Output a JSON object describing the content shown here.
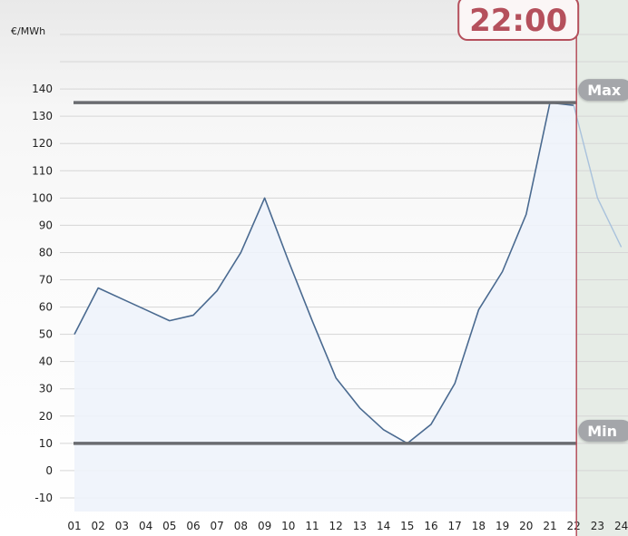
{
  "chart_data": {
    "type": "line",
    "unit_label": "€/MWh",
    "x": [
      "01",
      "02",
      "03",
      "04",
      "05",
      "06",
      "07",
      "08",
      "09",
      "10",
      "11",
      "12",
      "13",
      "14",
      "15",
      "16",
      "17",
      "18",
      "19",
      "20",
      "21",
      "22",
      "23",
      "24"
    ],
    "series": [
      {
        "values": [
          50,
          67,
          63,
          59,
          55,
          57,
          66,
          80,
          100,
          77,
          55,
          34,
          23,
          15,
          10,
          17,
          32,
          59,
          73,
          94,
          135,
          134,
          100,
          82
        ]
      }
    ],
    "ylim": [
      -15,
      160
    ],
    "yticks": [
      "140",
      "130",
      "120",
      "110",
      "100",
      "90",
      "80",
      "70",
      "60",
      "50",
      "40",
      "30",
      "20",
      "10",
      "0",
      "-10"
    ],
    "ytick_values": [
      140,
      130,
      120,
      110,
      100,
      90,
      80,
      70,
      60,
      50,
      40,
      30,
      20,
      10,
      0,
      -10
    ],
    "max_line": {
      "label": "Max",
      "value": 135
    },
    "min_line": {
      "label": "Min",
      "value": 10
    },
    "current_time": {
      "label": "22:00",
      "hour_index": 21
    },
    "grid": true,
    "colors": {
      "line": "#4a6a90",
      "future_line": "#a9c2dc",
      "area_fill": "#eef3fb",
      "future_bg": "#e6ece6",
      "marker": "#b5505c",
      "ref_line": "#6a6c70",
      "badge": "#a4a6aa"
    }
  }
}
